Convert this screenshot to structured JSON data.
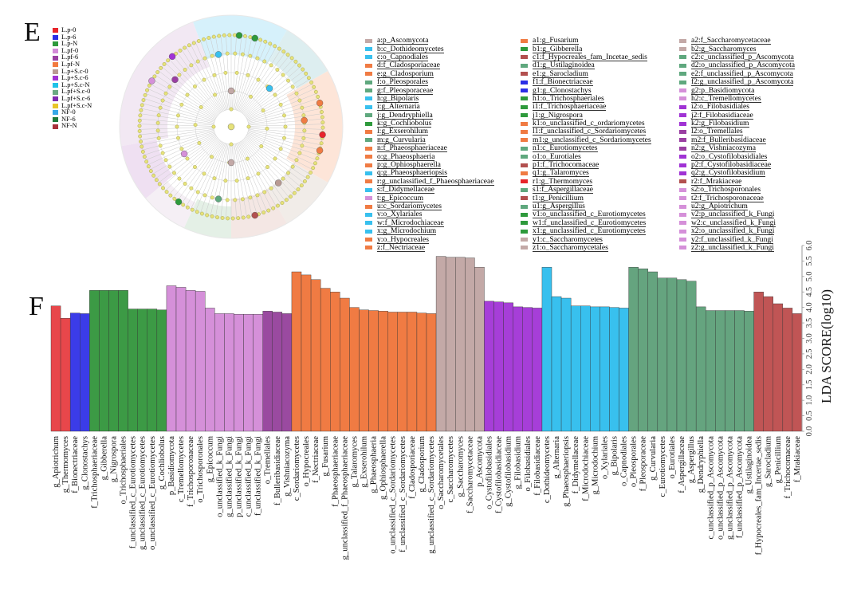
{
  "panel_e": {
    "letter": "E",
    "group_legend": [
      {
        "label": "L.p-0",
        "color": "#e8252b"
      },
      {
        "label": "L.p-6",
        "color": "#2b2ee6"
      },
      {
        "label": "L.p-N",
        "color": "#2e9a3c"
      },
      {
        "label": "L.pf-0",
        "color": "#d38ad8"
      },
      {
        "label": "L.pf-6",
        "color": "#9a3fa2"
      },
      {
        "label": "L.pf-N",
        "color": "#f27a3e"
      },
      {
        "label": "L.p+S.c-0",
        "color": "#b99a93"
      },
      {
        "label": "L.p+S.c-6",
        "color": "#a033d4"
      },
      {
        "label": "L.p+S.c-N",
        "color": "#1fc2e8"
      },
      {
        "label": "L.pf+S.c-0",
        "color": "#6aaa82"
      },
      {
        "label": "L.pf+S.c-6",
        "color": "#7f2bb0"
      },
      {
        "label": "L.pf+S.c-N",
        "color": "#e8c62a"
      },
      {
        "label": "NF-0",
        "color": "#37a8e8"
      },
      {
        "label": "NF-6",
        "color": "#1f7a3a"
      },
      {
        "label": "NF-N",
        "color": "#a8303a"
      }
    ],
    "taxa_legend": [
      [
        {
          "label": "a:p_Ascomycota",
          "color": "#c3a9a7"
        },
        {
          "label": "b:c_Dothideomycetes",
          "color": "#38c0ee"
        },
        {
          "label": "c:o_Capnodiales",
          "color": "#38c0ee"
        },
        {
          "label": "d:f_Cladosporiaceae",
          "color": "#f07b43"
        },
        {
          "label": "e:g_Cladosporium",
          "color": "#f07b43"
        },
        {
          "label": "f:o_Pleosporales",
          "color": "#5fa87e"
        },
        {
          "label": "g:f_Pleosporaceae",
          "color": "#5fa87e"
        },
        {
          "label": "h:g_Bipolaris",
          "color": "#38c0ee"
        },
        {
          "label": "i:g_Alternaria",
          "color": "#38c0ee"
        },
        {
          "label": "j:g_Dendryphiella",
          "color": "#5fa87e"
        },
        {
          "label": "k:g_Cochliobolus",
          "color": "#2e9a3c"
        },
        {
          "label": "l:g_Exserohilum",
          "color": "#f07b43"
        },
        {
          "label": "m:g_Curvularia",
          "color": "#5fa87e"
        },
        {
          "label": "n:f_Phaeosphaeriaceae",
          "color": "#f07b43"
        },
        {
          "label": "o:g_Phaeosphaeria",
          "color": "#f07b43"
        },
        {
          "label": "p:g_Ophiosphaerella",
          "color": "#f07b43"
        },
        {
          "label": "q:g_Phaeosphaeriopsis",
          "color": "#38c0ee"
        },
        {
          "label": "r:g_unclassified_f_Phaeosphaeriaceae",
          "color": "#f07b43"
        },
        {
          "label": "s:f_Didymellaceae",
          "color": "#38c0ee"
        },
        {
          "label": "t:g_Epicoccum",
          "color": "#d590d9"
        },
        {
          "label": "u:c_Sordariomycetes",
          "color": "#f07b43"
        },
        {
          "label": "v:o_Xylariales",
          "color": "#38c0ee"
        },
        {
          "label": "w:f_Microdochiaceae",
          "color": "#38c0ee"
        },
        {
          "label": "x:g_Microdochium",
          "color": "#38c0ee"
        },
        {
          "label": "y:o_Hypocreales",
          "color": "#f07b43"
        },
        {
          "label": "z:f_Nectriaceae",
          "color": "#f07b43"
        }
      ],
      [
        {
          "label": "a1:g_Fusarium",
          "color": "#f07b43"
        },
        {
          "label": "b1:g_Gibberella",
          "color": "#2e9a3c"
        },
        {
          "label": "c1:f_Hypocreales_fam_Incetae_sedis",
          "color": "#b2504f"
        },
        {
          "label": "d1:g_Ustilaginoidea",
          "color": "#5fa87e"
        },
        {
          "label": "e1:g_Sarocladium",
          "color": "#b2504f"
        },
        {
          "label": "f1:f_Bionectriaceae",
          "color": "#2b2ee6"
        },
        {
          "label": "g1:g_Clonostachys",
          "color": "#2b2ee6"
        },
        {
          "label": "h1:o_Trichosphaeriales",
          "color": "#2e9a3c"
        },
        {
          "label": "i1:f_Trichosphaeriaceae",
          "color": "#2e9a3c"
        },
        {
          "label": "j1:g_Nigrospora",
          "color": "#2e9a3c"
        },
        {
          "label": "k1:o_unclassified_c_ordariomycetes",
          "color": "#f07b43"
        },
        {
          "label": "l1:f_unclassified_c_Sordariomycetes",
          "color": "#f07b43"
        },
        {
          "label": "m1:g_unclassified_c_Sordariomycetes",
          "color": "#f07b43"
        },
        {
          "label": "n1:c_Eurotiomycetes",
          "color": "#5fa87e"
        },
        {
          "label": "o1:o_Eurotiales",
          "color": "#5fa87e"
        },
        {
          "label": "p1:f_Trichocomaceae",
          "color": "#b2504f"
        },
        {
          "label": "q1:g_Talaromyces",
          "color": "#f07b43"
        },
        {
          "label": "r1:g_Thermomyces",
          "color": "#e8252b"
        },
        {
          "label": "s1:f_Aspergillaceae",
          "color": "#5fa87e"
        },
        {
          "label": "t1:g_Penicillium",
          "color": "#b2504f"
        },
        {
          "label": "u1:g_Aspergillus",
          "color": "#5fa87e"
        },
        {
          "label": "v1:o_unclassified_c_Eurotiomycetes",
          "color": "#2e9a3c"
        },
        {
          "label": "w1:f_unclassified_c_Eurotiomycetes",
          "color": "#2e9a3c"
        },
        {
          "label": "x1:g_unclassified_c_Eurotiomycetes",
          "color": "#2e9a3c"
        },
        {
          "label": "y1:c_Saccharomycetes",
          "color": "#c3a9a7"
        },
        {
          "label": "z1:o_Saccharomycetales",
          "color": "#c3a9a7"
        }
      ],
      [
        {
          "label": "a2:f_Saccharomycetaceae",
          "color": "#c3a9a7"
        },
        {
          "label": "b2:g_Saccharomyces",
          "color": "#c3a9a7"
        },
        {
          "label": "c2:c_unclassified_p_Ascomycota",
          "color": "#5fa87e"
        },
        {
          "label": "d2:o_unclassified_p_Ascomycota",
          "color": "#5fa87e"
        },
        {
          "label": "e2:f_unclassified_p_Ascomycota",
          "color": "#5fa87e"
        },
        {
          "label": "f2:g_unclassified_p_Ascomycota",
          "color": "#5fa87e"
        },
        {
          "label": "g2:p_Basidiomycota",
          "color": "#d590d9"
        },
        {
          "label": "h2:c_Tremellomycetes",
          "color": "#d590d9"
        },
        {
          "label": "i2:o_Filobasidiales",
          "color": "#a033d4"
        },
        {
          "label": "j2:f_Filobasidiaceae",
          "color": "#a033d4"
        },
        {
          "label": "k2:g_Filobasidium",
          "color": "#a033d4"
        },
        {
          "label": "l2:o_Tremellales",
          "color": "#9a3fa2"
        },
        {
          "label": "m2:f_Bulleribasidiaceae",
          "color": "#9a3fa2"
        },
        {
          "label": "n2:g_Vishniacozyma",
          "color": "#9a3fa2"
        },
        {
          "label": "o2:o_Cystofilobasidiales",
          "color": "#a033d4"
        },
        {
          "label": "p2:f_Cystofilobasidiaceae",
          "color": "#a033d4"
        },
        {
          "label": "q2:g_Cystofilobasidium",
          "color": "#a033d4"
        },
        {
          "label": "r2:f_Mrakiaceae",
          "color": "#b2504f"
        },
        {
          "label": "s2:o_Trichosporonales",
          "color": "#d590d9"
        },
        {
          "label": "t2:f_Trichosporonaceae",
          "color": "#d590d9"
        },
        {
          "label": "u2:g_Apiotrichum",
          "color": "#d590d9"
        },
        {
          "label": "v2:p_unclassified_k_Fungi",
          "color": "#d590d9"
        },
        {
          "label": "w2:c_unclassified_k_Fungi",
          "color": "#d590d9"
        },
        {
          "label": "x2:o_unclassified_k_Fungi",
          "color": "#d590d9"
        },
        {
          "label": "y2:f_unclassified_k_Fungi",
          "color": "#d590d9"
        },
        {
          "label": "z2:g_unclassified_k_Fungi",
          "color": "#d590d9"
        }
      ]
    ]
  },
  "panel_f": {
    "letter": "F"
  },
  "chart_data": {
    "type": "bar",
    "title": "",
    "xlabel": "",
    "ylabel": "LDA SCORE(log10)",
    "ylim": [
      0,
      6
    ],
    "yticks": [
      0.0,
      0.5,
      1.0,
      1.5,
      2.0,
      2.5,
      3.0,
      3.5,
      4.0,
      4.5,
      5.0,
      5.5,
      6.0
    ],
    "ytick_labels": [
      "0.0",
      "0.5",
      "1.0",
      "1.5",
      "2.0",
      "2.5",
      "3.0",
      "3.5",
      "4.0",
      "4.5",
      "5.0",
      "5.5",
      "6.0"
    ],
    "grid": false,
    "legend": "none",
    "series": [
      {
        "name": "L.p-0",
        "color": "#e8474b",
        "categories": [
          "g_Apiotrichum",
          "g_Thermomyces"
        ],
        "values": [
          4.05,
          3.65
        ]
      },
      {
        "name": "L.p-6",
        "color": "#3b3ce8",
        "categories": [
          "f_Bionectriaceae",
          "g_Clonostachys"
        ],
        "values": [
          3.82,
          3.8
        ]
      },
      {
        "name": "L.p-N",
        "color": "#3c9a45",
        "categories": [
          "f_Trichosphaeriaceae",
          "g_Gibberella",
          "g_Nigrospora",
          "o_Trichosphaeriales",
          "f_unclassified_c_Eurotiomycetes",
          "g_unclassified_c_Eurotiomycetes",
          "o_unclassified_c_Eurotiomycetes",
          "g_Cochliobolus"
        ],
        "values": [
          4.55,
          4.55,
          4.55,
          4.55,
          3.95,
          3.95,
          3.95,
          3.92
        ]
      },
      {
        "name": "L.pf-0",
        "color": "#d590d9",
        "categories": [
          "p_Basidiomycota",
          "c_Tremellomycetes",
          "f_Trichosporonaceae",
          "o_Trichosporonales",
          "g_Epicoccum",
          "o_unclassified_k_Fungi",
          "g_unclassified_k_Fungi",
          "p_unclassified_k_Fungi",
          "c_unclassified_k_Fungi",
          "f_unclassified_k_Fungi"
        ],
        "values": [
          4.7,
          4.65,
          4.55,
          4.52,
          3.98,
          3.8,
          3.8,
          3.78,
          3.78,
          3.78
        ]
      },
      {
        "name": "L.pf-6",
        "color": "#9a4aa0",
        "categories": [
          "o_Tremellales",
          "f_Bulleribasidiaceae",
          "g_Vishniacozyma"
        ],
        "values": [
          3.88,
          3.85,
          3.8
        ]
      },
      {
        "name": "L.pf-N",
        "color": "#f07b43",
        "categories": [
          "c_Sordariomycetes",
          "o_Hypocreales",
          "f_Nectriaceae",
          "g_Fusarium",
          "f_Phaeosphaeriaceae",
          "g_unclassified_f_Phaeosphaeriaceae",
          "g_Talaromyces",
          "g_Exserohilum",
          "g_Phaeosphaeria",
          "g_Ophiosphaerella",
          "o_unclassified_c_Sordariomycetes",
          "f_unclassified_c_Sordariomycetes",
          "f_Cladosporiaceae",
          "g_Cladosporium",
          "g_unclassified_c_Sordariomycetes"
        ],
        "values": [
          5.15,
          5.05,
          4.9,
          4.62,
          4.5,
          4.3,
          4.0,
          3.92,
          3.9,
          3.88,
          3.85,
          3.85,
          3.85,
          3.82,
          3.8
        ]
      },
      {
        "name": "L.p+S.c-0",
        "color": "#c3a9a7",
        "categories": [
          "o_Saccharomycetales",
          "c_Saccharomycetes",
          "g_Saccharomyces",
          "f_Saccharomycetaceae",
          "p_Ascomycota"
        ],
        "values": [
          5.65,
          5.62,
          5.62,
          5.6,
          5.3
        ]
      },
      {
        "name": "L.p+S.c-6",
        "color": "#a63ed8",
        "categories": [
          "o_Cystofilobasidiales",
          "f_Cystofilobasidiaceae",
          "g_Cystofilobasidium",
          "g_Filobasidium",
          "o_Filobasidiales",
          "f_Filobasidiaceae"
        ],
        "values": [
          4.2,
          4.18,
          4.15,
          4.02,
          4.0,
          3.98
        ]
      },
      {
        "name": "L.p+S.c-N",
        "color": "#38c0ee",
        "categories": [
          "c_Dothideomycetes",
          "g_Alternaria",
          "g_Phaeosphaeriopsis",
          "f_Didymellaceae",
          "f_Microdochiaceae",
          "g_Microdochium",
          "o_Xylariales",
          "g_Bipolaris",
          "o_Capnodiales"
        ],
        "values": [
          5.3,
          4.35,
          4.3,
          4.05,
          4.05,
          4.02,
          4.02,
          4.0,
          3.98
        ]
      },
      {
        "name": "L.pf+S.c-0",
        "color": "#65a47f",
        "categories": [
          "o_Pleosporales",
          "f_Pleosporaceae",
          "g_Curvularia",
          "c_Eurotiomycetes",
          "o_Eurotiales",
          "f_Aspergillaceae",
          "g_Aspergillus",
          "g_Dendryphiella",
          "c_unclassified_p_Ascomycota",
          "o_unclassified_p_Ascomycota",
          "g_unclassified_p_Ascomycota",
          "f_unclassified_p_Ascomycota",
          "g_Ustilaginoidea"
        ],
        "values": [
          5.3,
          5.25,
          5.15,
          4.95,
          4.95,
          4.9,
          4.85,
          4.02,
          3.9,
          3.9,
          3.9,
          3.9,
          3.88
        ]
      },
      {
        "name": "NF-N",
        "color": "#c05555",
        "categories": [
          "f_Hypocreales_fam_Incertae_sedis",
          "g_Sarocladium",
          "g_Penicillium",
          "f_Trichocomaceae",
          "f_Mrakiaceae"
        ],
        "values": [
          4.5,
          4.35,
          4.12,
          3.98,
          3.8
        ]
      }
    ]
  }
}
